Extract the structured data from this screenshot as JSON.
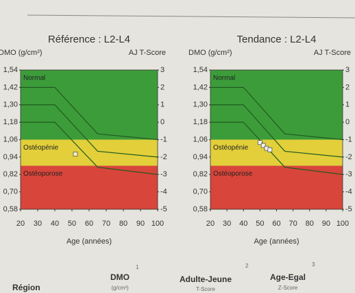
{
  "chart_data": [
    {
      "type": "line",
      "title": "Référence : L2-L4",
      "ylabel": "DMO (g/cm²)",
      "y2label": "AJ T-Score",
      "xlabel": "Age (années)",
      "xlim": [
        20,
        100
      ],
      "xticks": [
        20,
        30,
        40,
        50,
        60,
        70,
        80,
        90,
        100
      ],
      "ylim": [
        0.58,
        1.54
      ],
      "yticks": [
        {
          "value": 0.58,
          "label": "0,58"
        },
        {
          "value": 0.7,
          "label": "0,70"
        },
        {
          "value": 0.82,
          "label": "0,82"
        },
        {
          "value": 0.94,
          "label": "0,94"
        },
        {
          "value": 1.06,
          "label": "1,06"
        },
        {
          "value": 1.18,
          "label": "1,18"
        },
        {
          "value": 1.3,
          "label": "1,30"
        },
        {
          "value": 1.42,
          "label": "1,42"
        },
        {
          "value": 1.54,
          "label": "1,54"
        }
      ],
      "y2lim": [
        -5,
        3
      ],
      "y2ticks": [
        3,
        2,
        1,
        0,
        -1,
        -2,
        -3,
        -4,
        -5
      ],
      "zones": [
        {
          "name": "Normal",
          "from": 1.06,
          "to": 1.54,
          "color": "#3d9c3a"
        },
        {
          "name": "Ostéopénie",
          "from": 0.88,
          "to": 1.06,
          "color": "#e2cf3a"
        },
        {
          "name": "Ostéoporose",
          "from": 0.58,
          "to": 0.88,
          "color": "#d8453a"
        }
      ],
      "x": [
        20,
        40,
        65,
        100
      ],
      "series": [
        {
          "color": "#1f5a1f",
          "values": [
            1.42,
            1.42,
            1.1,
            1.06
          ]
        },
        {
          "color": "#1f5a1f",
          "values": [
            1.3,
            1.3,
            0.98,
            0.94
          ]
        },
        {
          "color": "#1f5a1f",
          "values": [
            1.18,
            1.18,
            0.87,
            0.82
          ]
        }
      ],
      "points": {
        "color": "#f4f0c0",
        "x": [
          52
        ],
        "values": [
          0.96
        ]
      }
    },
    {
      "type": "line",
      "title": "Tendance : L2-L4",
      "ylabel": "DMO (g/cm²)",
      "y2label": "AJ T-Score",
      "xlabel": "Age (années)",
      "xlim": [
        20,
        100
      ],
      "xticks": [
        20,
        30,
        40,
        50,
        60,
        70,
        80,
        90,
        100
      ],
      "ylim": [
        0.58,
        1.54
      ],
      "yticks": [
        {
          "value": 0.58,
          "label": "0,58"
        },
        {
          "value": 0.7,
          "label": "0,70"
        },
        {
          "value": 0.82,
          "label": "0,82"
        },
        {
          "value": 0.94,
          "label": "0,94"
        },
        {
          "value": 1.06,
          "label": "1,06"
        },
        {
          "value": 1.18,
          "label": "1,18"
        },
        {
          "value": 1.3,
          "label": "1,30"
        },
        {
          "value": 1.42,
          "label": "1,42"
        },
        {
          "value": 1.54,
          "label": "1,54"
        }
      ],
      "y2lim": [
        -5,
        3
      ],
      "y2ticks": [
        3,
        2,
        1,
        0,
        -1,
        -2,
        -3,
        -4,
        -5
      ],
      "zones": [
        {
          "name": "Normal",
          "from": 1.06,
          "to": 1.54,
          "color": "#3d9c3a"
        },
        {
          "name": "Ostéopénie",
          "from": 0.88,
          "to": 1.06,
          "color": "#e2cf3a"
        },
        {
          "name": "Ostéoporose",
          "from": 0.58,
          "to": 0.88,
          "color": "#d8453a"
        }
      ],
      "x": [
        20,
        40,
        65,
        100
      ],
      "series": [
        {
          "color": "#1f5a1f",
          "values": [
            1.42,
            1.42,
            1.1,
            1.06
          ]
        },
        {
          "color": "#1f5a1f",
          "values": [
            1.3,
            1.3,
            0.98,
            0.94
          ]
        },
        {
          "color": "#1f5a1f",
          "values": [
            1.18,
            1.18,
            0.87,
            0.82
          ]
        }
      ],
      "points": {
        "color": "#f4f4f4",
        "x": [
          50,
          52,
          54,
          56
        ],
        "values": [
          1.04,
          1.02,
          1.0,
          0.99
        ]
      }
    }
  ],
  "table": {
    "headers": [
      "Région",
      "DMO",
      "Adulte-Jeune",
      "Age-Egal"
    ],
    "notes": [
      "1",
      "2",
      "3"
    ],
    "subheaders": [
      "(g/cm²)",
      "T-Score",
      "Z-Score"
    ]
  }
}
